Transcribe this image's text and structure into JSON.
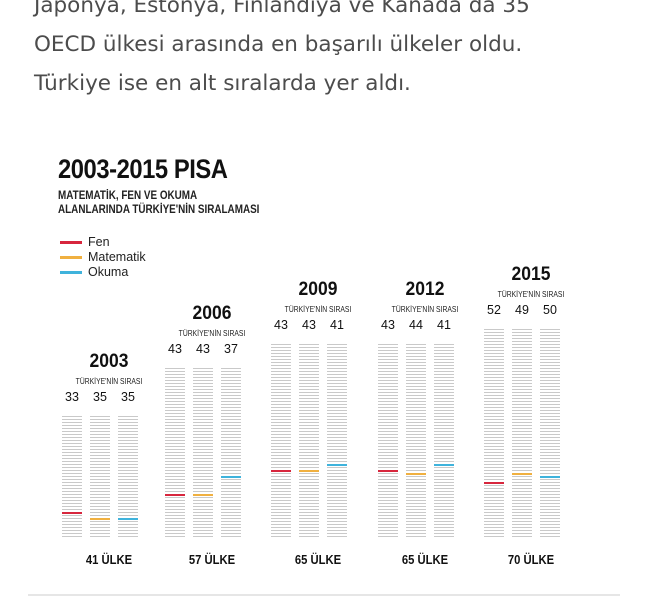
{
  "article": {
    "lines": [
      "Japonya, Estonya, Finlandiya ve Kanada da 35",
      "OECD ülkesi arasında en başarılı ülkeler oldu.",
      "Türkiye ise en alt sıralarda yer aldı."
    ]
  },
  "figure": {
    "title": "2003-2015 PISA",
    "subtitle_line1": "MATEMATİK, FEN VE OKUMA",
    "subtitle_line2": "ALANLARINDA TÜRKİYE'NİN SIRALAMASI",
    "colors": {
      "fen": "#d7263d",
      "matematik": "#f0b040",
      "okuma": "#3fb3dc"
    },
    "legend": [
      {
        "label": "Fen",
        "color": "#d7263d"
      },
      {
        "label": "Matematik",
        "color": "#f0b040"
      },
      {
        "label": "Okuma",
        "color": "#3fb3dc"
      }
    ]
  },
  "chart_data": {
    "type": "bar",
    "title": "2003-2015 PISA",
    "subtitle": "MATEMATİK, FEN VE OKUMA ALANLARINDA TÜRKİYE'NİN SIRALAMASI",
    "categories": [
      "2003",
      "2006",
      "2009",
      "2012",
      "2015"
    ],
    "rank_caption": "TÜRKİYE'NİN SIRASI",
    "country_counts": [
      41,
      57,
      65,
      65,
      70
    ],
    "count_labels": [
      "41 ÜLKE",
      "57 ÜLKE",
      "65 ÜLKE",
      "65 ÜLKE",
      "70 ÜLKE"
    ],
    "series": [
      {
        "name": "Fen",
        "values": [
          33,
          43,
          43,
          43,
          52
        ]
      },
      {
        "name": "Matematik",
        "values": [
          35,
          43,
          43,
          44,
          49
        ]
      },
      {
        "name": "Okuma",
        "values": [
          35,
          37,
          41,
          41,
          50
        ]
      }
    ],
    "legend_position": "top-left"
  }
}
